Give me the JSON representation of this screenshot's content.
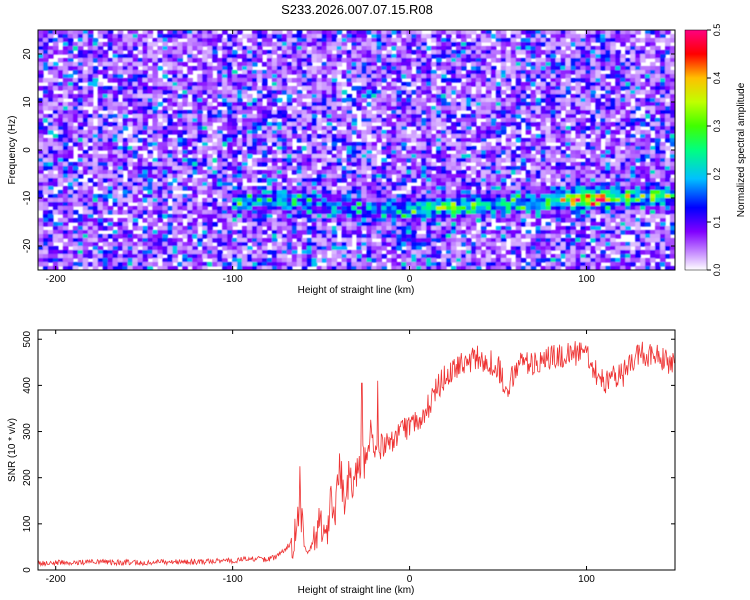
{
  "title": "S233.2026.007.07.15.R08",
  "chart_data": [
    {
      "type": "heatmap",
      "xlabel": "Height of straight line (km)",
      "ylabel": "Frequency (Hz)",
      "xlim": [
        -210,
        150
      ],
      "ylim": [
        -25,
        25
      ],
      "xticks": [
        -200,
        -100,
        0,
        100
      ],
      "xtick_labels": [
        "-200",
        "-100",
        "0",
        "100"
      ],
      "yticks": [
        -20,
        -10,
        0,
        10,
        20
      ],
      "ytick_labels": [
        "-20",
        "-10",
        "0",
        "10",
        "20"
      ],
      "colorbar": {
        "label": "Normalized spectral amplitude",
        "range": [
          0.0,
          0.5
        ],
        "ticks": [
          0.0,
          0.1,
          0.2,
          0.3,
          0.4,
          0.5
        ],
        "tick_labels": [
          "0.0",
          "0.1",
          "0.2",
          "0.3",
          "0.4",
          "0.5"
        ],
        "colors": [
          "#ffffff",
          "#c080ff",
          "#8000ff",
          "#0000ff",
          "#00c0ff",
          "#00ff80",
          "#40ff00",
          "#c0ff00",
          "#ffc000",
          "#ff0000",
          "#ff0080"
        ]
      },
      "ridge": {
        "description_free": true,
        "x": [
          -100,
          -80,
          -60,
          -40,
          -20,
          0,
          20,
          40,
          60,
          80,
          100,
          120,
          150
        ],
        "y": [
          -11,
          -10.5,
          -10.5,
          -12,
          -12.5,
          -12.5,
          -12,
          -11.5,
          -11,
          -10.5,
          -10,
          -10,
          -9.5
        ],
        "peak_amplitude": [
          0.12,
          0.15,
          0.14,
          0.12,
          0.13,
          0.16,
          0.27,
          0.18,
          0.16,
          0.17,
          0.45,
          0.22,
          0.2
        ]
      },
      "background_amplitude": 0.08
    },
    {
      "type": "line",
      "xlabel": "Height of straight line (km)",
      "ylabel": "SNR (10 * v/v)",
      "xlim": [
        -210,
        150
      ],
      "ylim": [
        0,
        520
      ],
      "xticks": [
        -200,
        -100,
        0,
        100
      ],
      "xtick_labels": [
        "-200",
        "-100",
        "0",
        "100"
      ],
      "yticks": [
        0,
        100,
        200,
        300,
        400,
        500
      ],
      "ytick_labels": [
        "0",
        "100",
        "200",
        "300",
        "400",
        "500"
      ],
      "color": "#ee3333",
      "series": [
        {
          "name": "SNR",
          "x": [
            -210,
            -180,
            -150,
            -120,
            -100,
            -90,
            -80,
            -75,
            -70,
            -65,
            -62,
            -60,
            -58,
            -55,
            -50,
            -47,
            -45,
            -42,
            -40,
            -37,
            -35,
            -30,
            -25,
            -22,
            -20,
            -15,
            -10,
            -5,
            0,
            5,
            10,
            15,
            20,
            25,
            30,
            40,
            50,
            55,
            58,
            60,
            70,
            80,
            90,
            100,
            105,
            110,
            120,
            125,
            130,
            140,
            150
          ],
          "y": [
            15,
            17,
            16,
            18,
            20,
            25,
            22,
            30,
            45,
            70,
            140,
            60,
            35,
            55,
            110,
            60,
            150,
            120,
            230,
            160,
            190,
            200,
            240,
            300,
            260,
            270,
            280,
            300,
            310,
            330,
            350,
            390,
            420,
            440,
            450,
            460,
            440,
            390,
            420,
            440,
            450,
            460,
            470,
            470,
            430,
            410,
            420,
            450,
            470,
            460,
            440
          ]
        }
      ],
      "spikes": [
        {
          "x": -62,
          "y": 225
        },
        {
          "x": -27,
          "y": 405
        },
        {
          "x": -18,
          "y": 410
        }
      ]
    }
  ]
}
